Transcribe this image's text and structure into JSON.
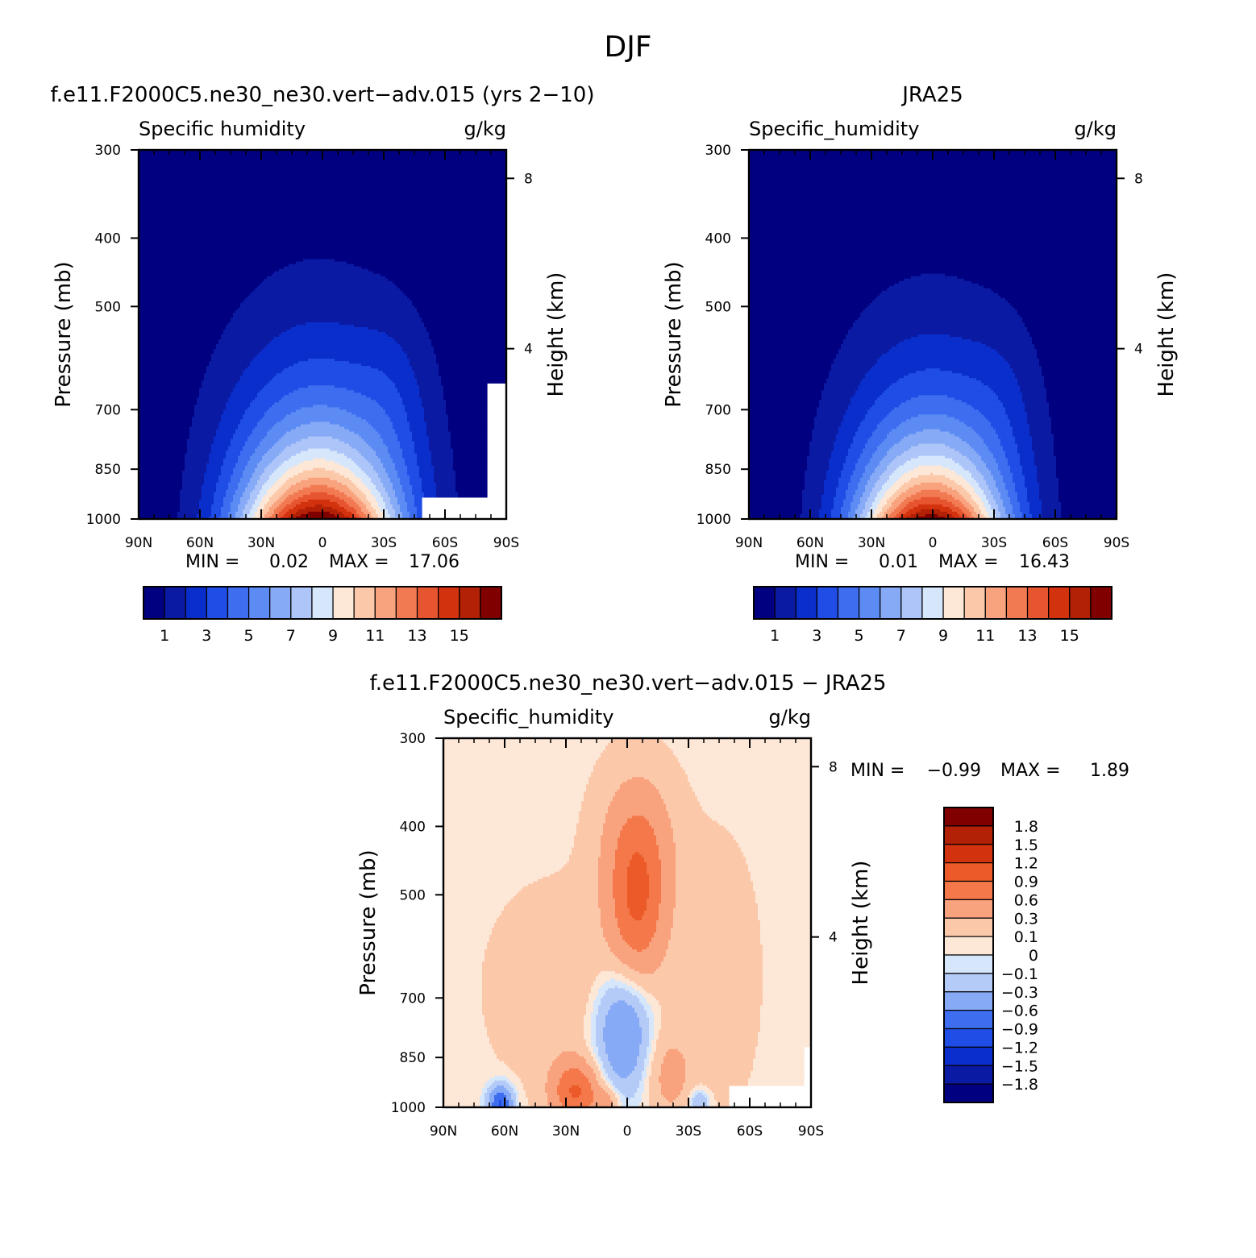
{
  "figure": {
    "season_title": "DJF"
  },
  "palette": {
    "full_field": [
      "#000080",
      "#0b1aa3",
      "#0a2ecc",
      "#1f4de6",
      "#3e6df0",
      "#5d8bf4",
      "#87aaf6",
      "#adc5f8",
      "#d6e6fb",
      "#fde7d6",
      "#fcc8aa",
      "#f9a27e",
      "#f27a52",
      "#e65530",
      "#d3320f",
      "#b22006",
      "#800000"
    ],
    "difference": [
      "#000080",
      "#0b1aa3",
      "#0a2ecc",
      "#1f4de6",
      "#3e6df0",
      "#87aaf6",
      "#b4cbf8",
      "#d6e6fb",
      "#fde7d6",
      "#fcc8aa",
      "#f9a27e",
      "#f4784a",
      "#eb5a28",
      "#d3320f",
      "#b22006",
      "#800000"
    ]
  },
  "chart_data": [
    {
      "type": "heatmap",
      "panel": "model",
      "title": "f.e11.F2000C5.ne30_ne30.vert−adv.015 (yrs 2−10)",
      "variable": "Specific humidity",
      "units": "g/kg",
      "ylabel": "Pressure (mb)",
      "ylabel_right": "Height (km)",
      "x_ticks": [
        "90N",
        "60N",
        "30N",
        "0",
        "30S",
        "60S",
        "90S"
      ],
      "y_ticks": [
        "300",
        "400",
        "500",
        "700",
        "850",
        "1000"
      ],
      "y_right_ticks": [
        "8",
        "4"
      ],
      "min_label": "MIN =",
      "min_value": "0.02",
      "max_label": "MAX =",
      "max_value": "17.06",
      "colorbar_labels": [
        "1",
        "3",
        "5",
        "7",
        "9",
        "11",
        "13",
        "15"
      ],
      "contour_levels": [
        1,
        2,
        3,
        4,
        5,
        6,
        7,
        8,
        9,
        10,
        11,
        12,
        13,
        14,
        15,
        16
      ],
      "peak_latitude": 0,
      "top_pressure_1gkg": 380,
      "missing_region": "surface 50S-90S"
    },
    {
      "type": "heatmap",
      "panel": "observations",
      "title": "JRA25",
      "variable": "Specific_humidity",
      "units": "g/kg",
      "ylabel": "Pressure (mb)",
      "ylabel_right": "Height (km)",
      "x_ticks": [
        "90N",
        "60N",
        "30N",
        "0",
        "30S",
        "60S",
        "90S"
      ],
      "y_ticks": [
        "300",
        "400",
        "500",
        "700",
        "850",
        "1000"
      ],
      "y_right_ticks": [
        "8",
        "4"
      ],
      "min_label": "MIN =",
      "min_value": "0.01",
      "max_label": "MAX =",
      "max_value": "16.43",
      "colorbar_labels": [
        "1",
        "3",
        "5",
        "7",
        "9",
        "11",
        "13",
        "15"
      ],
      "contour_levels": [
        1,
        2,
        3,
        4,
        5,
        6,
        7,
        8,
        9,
        10,
        11,
        12,
        13,
        14,
        15,
        16
      ],
      "peak_latitude": 0,
      "top_pressure_1gkg": 400
    },
    {
      "type": "heatmap",
      "panel": "difference",
      "title": "f.e11.F2000C5.ne30_ne30.vert−adv.015 − JRA25",
      "variable": "Specific_humidity",
      "units": "g/kg",
      "ylabel": "Pressure (mb)",
      "ylabel_right": "Height (km)",
      "x_ticks": [
        "90N",
        "60N",
        "30N",
        "0",
        "30S",
        "60S",
        "90S"
      ],
      "y_ticks": [
        "300",
        "400",
        "500",
        "700",
        "850",
        "1000"
      ],
      "y_right_ticks": [
        "8",
        "4"
      ],
      "min_label": "MIN =",
      "min_value": "−0.99",
      "max_label": "MAX =",
      "max_value": "1.89",
      "colorbar_labels": [
        "1.8",
        "1.5",
        "1.2",
        "0.9",
        "0.6",
        "0.3",
        "0.1",
        "0",
        "−0.1",
        "−0.3",
        "−0.6",
        "−0.9",
        "−1.2",
        "−1.5",
        "−1.8"
      ],
      "contour_levels": [
        -1.8,
        -1.5,
        -1.2,
        -0.9,
        -0.6,
        -0.3,
        -0.1,
        0,
        0.1,
        0.3,
        0.6,
        0.9,
        1.2,
        1.5,
        1.8
      ],
      "features": [
        {
          "description_level": 0.6,
          "lat": -5,
          "p": 500
        },
        {
          "description_level": -0.3,
          "lat": 0,
          "p": 780
        },
        {
          "description_level": 0.9,
          "lat": 20,
          "p": 980
        }
      ],
      "missing_region": "surface 50S-90S"
    }
  ]
}
